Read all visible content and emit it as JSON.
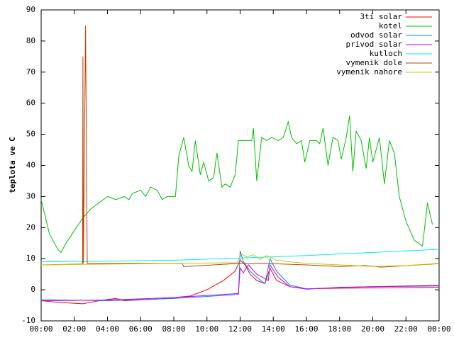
{
  "chart_data": {
    "type": "line",
    "y_label": "teplota ve C",
    "xlim": [
      0,
      24
    ],
    "xticks": [
      {
        "value": 0,
        "label": "00:00"
      },
      {
        "value": 2,
        "label": "02:00"
      },
      {
        "value": 4,
        "label": "04:00"
      },
      {
        "value": 6,
        "label": "06:00"
      },
      {
        "value": 8,
        "label": "08:00"
      },
      {
        "value": 10,
        "label": "10:00"
      },
      {
        "value": 12,
        "label": "12:00"
      },
      {
        "value": 14,
        "label": "14:00"
      },
      {
        "value": 16,
        "label": "16:00"
      },
      {
        "value": 18,
        "label": "18:00"
      },
      {
        "value": 20,
        "label": "20:00"
      },
      {
        "value": 22,
        "label": "22:00"
      },
      {
        "value": 24,
        "label": "00:00"
      }
    ],
    "ylim": [
      -10,
      90
    ],
    "yticks": [
      -10,
      0,
      10,
      20,
      30,
      40,
      50,
      60,
      70,
      80,
      90
    ],
    "legend": "top-right",
    "series": [
      {
        "name": "3ti solar",
        "color": "#ff0000",
        "x": [
          0,
          1,
          2.5,
          3.5,
          4.5,
          5,
          7,
          9,
          10,
          11,
          11.7,
          12,
          12.3,
          12.6,
          13,
          13.5,
          13.8,
          14.2,
          15,
          16,
          18,
          20,
          24
        ],
        "values": [
          -3.5,
          -4,
          -4.5,
          -3.5,
          -2.8,
          -3.5,
          -3,
          -2,
          0,
          3,
          6,
          9.5,
          8,
          5,
          3,
          2,
          7,
          3,
          1,
          0.3,
          0.5,
          0.6,
          0.8
        ]
      },
      {
        "name": "kotel",
        "color": "#00c000",
        "x": [
          0,
          0.5,
          1,
          1.2,
          1.5,
          2,
          2.5,
          3,
          3.5,
          4,
          4.5,
          5,
          5.3,
          5.5,
          6,
          6.3,
          6.6,
          7,
          7.3,
          7.6,
          8.1,
          8.3,
          8.6,
          8.9,
          9.1,
          9.3,
          9.6,
          9.8,
          10.1,
          10.4,
          10.6,
          10.9,
          11.1,
          11.4,
          11.7,
          11.9,
          12.3,
          12.7,
          12.8,
          13,
          13.3,
          13.6,
          13.9,
          14.3,
          14.6,
          14.9,
          15.1,
          15.4,
          15.7,
          15.9,
          16.2,
          16.6,
          16.8,
          17,
          17.3,
          17.6,
          17.9,
          18.1,
          18.4,
          18.6,
          18.8,
          19,
          19.3,
          19.6,
          19.8,
          20,
          20.4,
          20.7,
          21,
          21.3,
          21.6,
          22,
          22.5,
          23,
          23.3,
          23.6
        ],
        "values": [
          29,
          18,
          13,
          12,
          15,
          19,
          23,
          26,
          28,
          30,
          29,
          30,
          29,
          31,
          32,
          30,
          33,
          32,
          29,
          30,
          30,
          43,
          49,
          40,
          38,
          48,
          37,
          41,
          35,
          36,
          44,
          33,
          34,
          33,
          37,
          48,
          48,
          48,
          52,
          35,
          49,
          48,
          49,
          48,
          49,
          54,
          49,
          47,
          48,
          41,
          48,
          48,
          47,
          52,
          40,
          49,
          48,
          42,
          49,
          56,
          38,
          51,
          48,
          39,
          49,
          41,
          49,
          34,
          48,
          44,
          30,
          22,
          16,
          14,
          28,
          21
        ]
      },
      {
        "name": "odvod solar",
        "color": "#0080ff",
        "x": [
          0,
          4,
          8,
          11.9,
          12,
          12.2,
          12.6,
          13,
          13.5,
          13.8,
          14.2,
          15,
          16,
          18,
          20,
          24
        ],
        "values": [
          -3.2,
          -3.5,
          -2.8,
          -1.5,
          12.5,
          9,
          6,
          4,
          2,
          10,
          6,
          1.5,
          0.3,
          0.7,
          1,
          1.5
        ]
      },
      {
        "name": "privod solar",
        "color": "#c000ff",
        "x": [
          0,
          4,
          8,
          11.9,
          12,
          12.2,
          12.5,
          13,
          13.7,
          13.8,
          14.3,
          15,
          16,
          18,
          20,
          24
        ],
        "values": [
          -3.5,
          -3.3,
          -2.5,
          -1.2,
          7,
          5.5,
          8,
          5,
          3,
          8,
          4,
          1,
          0.2,
          0.8,
          1,
          1.2
        ]
      },
      {
        "name": "kutloch",
        "color": "#00eeee",
        "x": [
          0,
          4,
          8,
          12,
          16,
          20,
          24
        ],
        "values": [
          9,
          9.2,
          9.5,
          10.2,
          11,
          12,
          13
        ]
      },
      {
        "name": "vymenik dole",
        "color": "#c04000",
        "x": [
          0,
          2.5,
          2.52,
          2.55,
          2.68,
          2.78,
          8.5,
          8.6,
          9.5,
          12,
          13.5,
          16,
          18,
          19.5,
          20.5,
          21.5,
          24
        ],
        "values": [
          8,
          8.3,
          75,
          8.5,
          85,
          8.5,
          8.5,
          7.5,
          7.7,
          8.5,
          8.5,
          8,
          7.5,
          7.8,
          7.3,
          7.6,
          8.4
        ]
      },
      {
        "name": "vymenik nahore",
        "color": "#c8c800",
        "x": [
          0,
          8,
          11.8,
          12.1,
          12.4,
          12.8,
          13.2,
          13.6,
          14.2,
          15,
          16,
          18,
          20,
          22,
          24
        ],
        "values": [
          8,
          8.5,
          8.7,
          11.5,
          10.5,
          11.3,
          9.8,
          11,
          9.5,
          9,
          8.5,
          8,
          7.5,
          7.8,
          8.5
        ]
      }
    ]
  }
}
